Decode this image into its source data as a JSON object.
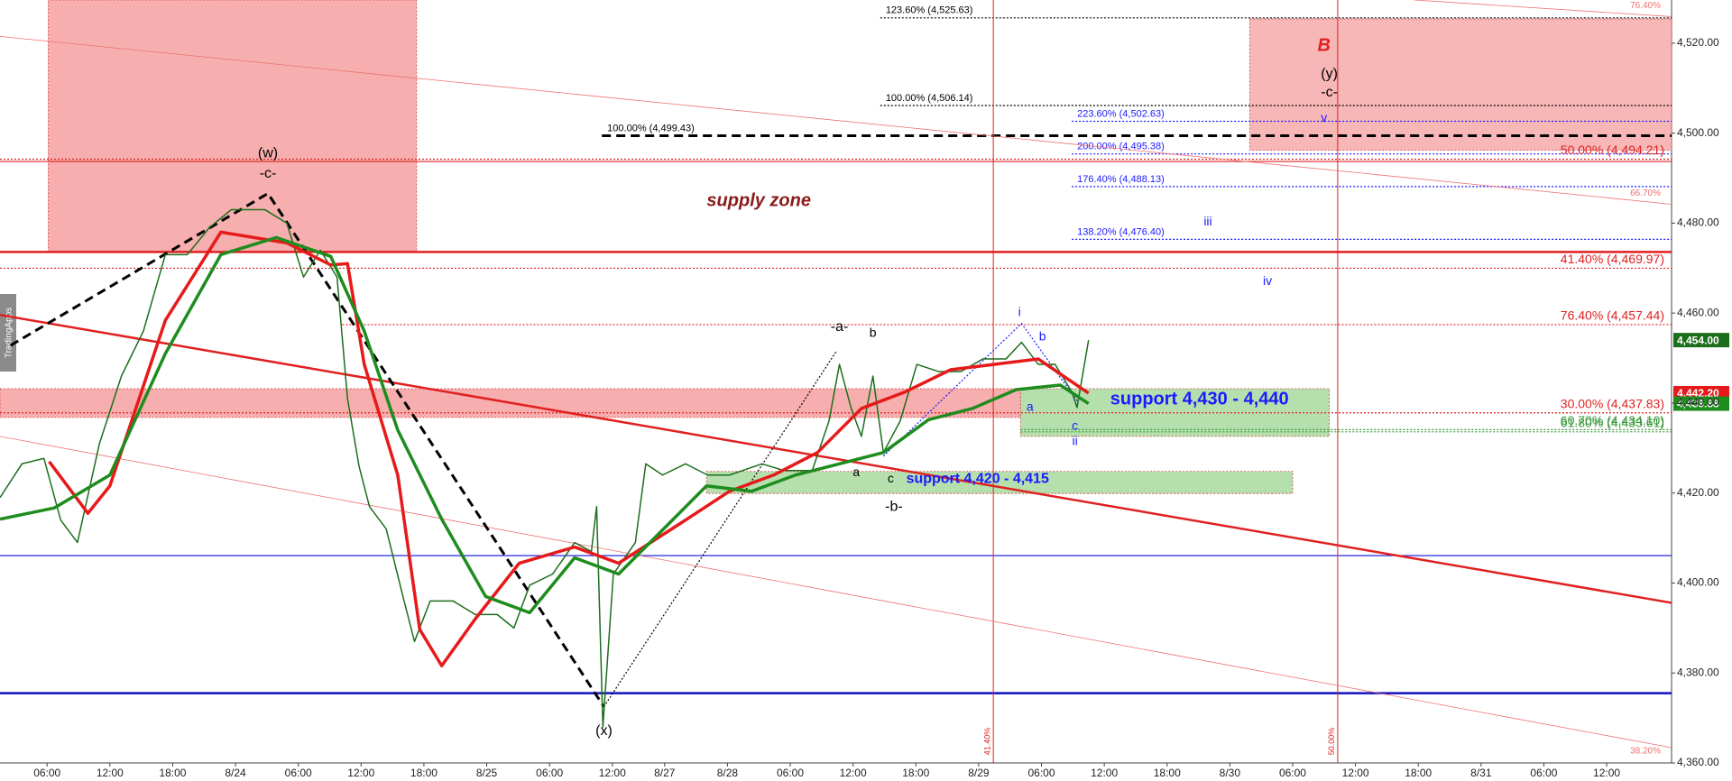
{
  "chart_data": {
    "type": "line",
    "watermark": "TradingApps",
    "xlim": [
      1.5,
      161.2
    ],
    "xticks": [
      {
        "value": 6,
        "label": "06:00"
      },
      {
        "value": 12,
        "label": "12:00"
      },
      {
        "value": 18,
        "label": "18:00"
      },
      {
        "value": 24,
        "label": "8/24"
      },
      {
        "value": 30,
        "label": "06:00"
      },
      {
        "value": 36,
        "label": "12:00"
      },
      {
        "value": 42,
        "label": "18:00"
      },
      {
        "value": 48,
        "label": "8/25"
      },
      {
        "value": 54,
        "label": "06:00"
      },
      {
        "value": 60,
        "label": "12:00"
      },
      {
        "value": 65,
        "label": "8/27"
      },
      {
        "value": 71,
        "label": "8/28"
      },
      {
        "value": 77,
        "label": "06:00"
      },
      {
        "value": 83,
        "label": "12:00"
      },
      {
        "value": 89,
        "label": "18:00"
      },
      {
        "value": 95,
        "label": "8/29"
      },
      {
        "value": 101,
        "label": "06:00"
      },
      {
        "value": 107,
        "label": "12:00"
      },
      {
        "value": 113,
        "label": "18:00"
      },
      {
        "value": 119,
        "label": "8/30"
      },
      {
        "value": 125,
        "label": "06:00"
      },
      {
        "value": 131,
        "label": "12:00"
      },
      {
        "value": 137,
        "label": "18:00"
      },
      {
        "value": 143,
        "label": "8/31"
      },
      {
        "value": 149,
        "label": "06:00"
      },
      {
        "value": 155,
        "label": "12:00"
      }
    ],
    "ylim": [
      4360,
      4529.6
    ],
    "yticks": [
      {
        "value": 4360,
        "label": "4,360.00"
      },
      {
        "value": 4380,
        "label": "4,380.00"
      },
      {
        "value": 4400,
        "label": "4,400.00"
      },
      {
        "value": 4420,
        "label": "4,420.00"
      },
      {
        "value": 4440,
        "label": "4,440.00"
      },
      {
        "value": 4460,
        "label": "4,460.00"
      },
      {
        "value": 4480,
        "label": "4,480.00"
      },
      {
        "value": 4500,
        "label": "4,500.00"
      },
      {
        "value": 4520,
        "label": "4,520.00"
      }
    ],
    "zones": [
      {
        "x": [
          6.1,
          41.3
        ],
        "y": [
          4473.6,
          4529.6
        ],
        "color": "#f5a0a0"
      },
      {
        "x": [
          1.5,
          99.0
        ],
        "y": [
          4436.8,
          4443.2
        ],
        "color": "#f5a0a0"
      },
      {
        "x": [
          99.0,
          128.5
        ],
        "y": [
          4432.6,
          4443.2
        ],
        "color": "#a8dba0"
      },
      {
        "x": [
          69.0,
          125.0
        ],
        "y": [
          4419.9,
          4424.8
        ],
        "color": "#a8dba0"
      },
      {
        "x": [
          120.9,
          161.2
        ],
        "y": [
          4496.2,
          4525.4
        ],
        "color": "#f7aaaa"
      }
    ],
    "levels": [
      {
        "value": 4493.7,
        "from": 1.5,
        "color": "#e02020",
        "style": "solid"
      },
      {
        "value": 4473.6,
        "from": 1.5,
        "color": "#e02020",
        "style": "thick"
      },
      {
        "value": 4406.1,
        "from": 1.5,
        "color": "#1010e0",
        "style": "solid"
      },
      {
        "value": 4375.5,
        "from": 1.5,
        "color": "#1010c0",
        "style": "thick"
      },
      {
        "label": "123.60% (4,525.63)",
        "value": 4525.63,
        "from": 85.6,
        "color": "#000000",
        "style": "dotted",
        "side": "left"
      },
      {
        "label": "100.00% (4,506.14)",
        "value": 4506.14,
        "from": 85.6,
        "color": "#000000",
        "style": "dotted",
        "side": "left"
      },
      {
        "label": "100.00% (4,499.43)",
        "value": 4499.43,
        "from": 59.0,
        "color": "#000000",
        "style": "thick-dashed",
        "side": "left"
      },
      {
        "label": "223.60% (4,502.63)",
        "value": 4502.63,
        "from": 103.9,
        "color": "#1a1aff",
        "style": "dotted",
        "side": "left"
      },
      {
        "label": "200.00% (4,495.38)",
        "value": 4495.38,
        "from": 103.9,
        "color": "#1a1aff",
        "style": "dotted",
        "side": "left"
      },
      {
        "label": "176.40% (4,488.13)",
        "value": 4488.13,
        "from": 103.9,
        "color": "#1a1aff",
        "style": "dotted",
        "side": "left"
      },
      {
        "label": "138.20% (4,476.40)",
        "value": 4476.4,
        "from": 103.9,
        "color": "#1a1aff",
        "style": "dotted",
        "side": "left"
      },
      {
        "label": "50.00% (4,494.21)",
        "value": 4494.21,
        "from": 1.5,
        "color": "#e02020",
        "style": "dotted",
        "side": "right"
      },
      {
        "label": "41.40% (4,469.97)",
        "value": 4469.97,
        "from": 1.5,
        "color": "#e02020",
        "style": "dotted",
        "side": "right"
      },
      {
        "label": "76.40% (4,457.44)",
        "value": 4457.44,
        "from": 34.2,
        "color": "#e02020",
        "style": "dotted",
        "side": "right"
      },
      {
        "label": "30.00% (4,437.83)",
        "value": 4437.83,
        "from": 1.5,
        "color": "#e02020",
        "style": "dotted",
        "side": "right"
      },
      {
        "label": "61.80% (4,433.61)",
        "value": 4433.61,
        "from": 99.0,
        "color": "#3a9a3a",
        "style": "dotted",
        "side": "right"
      },
      {
        "label": "60.70% (4,434.10)",
        "value": 4434.1,
        "from": 99.0,
        "color": "#3a9a3a",
        "style": "dotted",
        "side": "right"
      }
    ],
    "verticals": [
      {
        "x": 96.4,
        "label": "41.40%",
        "color": "#e02020"
      },
      {
        "x": 129.3,
        "label": "50.00%",
        "color": "#e02020"
      }
    ],
    "trendlines": [
      {
        "x": [
          1.5,
          161.2
        ],
        "y": [
          4459.6,
          4395.6
        ],
        "color": "#e02020",
        "style": "thick"
      },
      {
        "x": [
          1.5,
          161.2
        ],
        "y": [
          4521.5,
          4484.2
        ],
        "color": "#f07070",
        "style": "thin",
        "label": "66.70%"
      },
      {
        "x": [
          1.5,
          161.2
        ],
        "y": [
          4432.6,
          4363.4
        ],
        "color": "#f07070",
        "style": "thin",
        "label": "38.20%"
      },
      {
        "x": [
          136.6,
          161.2
        ],
        "y": [
          4529.6,
          4525.9
        ],
        "color": "#f07070",
        "style": "thin",
        "label": "76.40%"
      }
    ],
    "paths": [
      {
        "x": [
          2.5,
          27.1,
          59.2
        ],
        "y": [
          4452.8,
          4486.6,
          4372.5
        ],
        "color": "#000000",
        "style": "thick-dashed"
      },
      {
        "x": [
          59.2,
          81.4
        ],
        "y": [
          4372.5,
          4451.5
        ],
        "color": "#000000",
        "style": "dotted"
      },
      {
        "x": [
          85.9,
          99.1,
          104.4
        ],
        "y": [
          4428.2,
          4457.7,
          4440.5
        ],
        "color": "#1a1aff",
        "style": "dotted"
      }
    ],
    "series": [
      {
        "color": "#1c6e1c",
        "width": 1.5,
        "x": [
          1.5,
          3.6,
          5.7,
          7.3,
          8.9,
          11.0,
          13.1,
          15.2,
          17.3,
          19.4,
          21.5,
          23.6,
          26.8,
          28.9,
          30.5,
          32.1,
          33.7,
          34.7,
          35.8,
          36.8,
          38.4,
          40.0,
          41.1,
          42.6,
          44.8,
          46.9,
          49.0,
          50.6,
          52.1,
          54.3,
          56.4,
          58.0,
          58.5,
          59.1,
          60.1,
          62.2,
          63.2,
          64.8,
          67.0,
          69.1,
          71.2,
          74.3,
          76.4,
          79.1,
          80.7,
          81.7,
          82.8,
          83.8,
          84.9,
          85.9,
          87.5,
          89.1,
          91.2,
          93.3,
          95.4,
          97.6,
          99.1,
          100.7,
          102.3,
          103.9,
          104.4,
          105.5
        ],
        "values": [
          4419,
          4426.5,
          4427.7,
          4414,
          4409,
          4431,
          4446,
          4456,
          4473,
          4473,
          4479,
          4483,
          4483,
          4480,
          4468,
          4474,
          4468,
          4441,
          4426,
          4417,
          4412,
          4397,
          4387,
          4396,
          4396,
          4393,
          4393,
          4390,
          4399.5,
          4402,
          4409,
          4407,
          4417,
          4368,
          4402,
          4409,
          4426.5,
          4424,
          4426.5,
          4424,
          4424,
          4426.5,
          4425,
          4425,
          4436,
          4448.6,
          4439,
          4432.6,
          4446,
          4429,
          4436,
          4448.6,
          4447,
          4447,
          4449.8,
          4449.8,
          4453.5,
          4448.6,
          4448.6,
          4442.5,
          4439,
          4454
        ],
        "last_label": "4,454.00"
      },
      {
        "color": "#e61a1a",
        "width": 3.5,
        "x": [
          6.2,
          9.9,
          12.0,
          17.3,
          22.6,
          28.9,
          33.1,
          34.7,
          36.3,
          39.5,
          41.6,
          43.7,
          46.9,
          51.1,
          56.4,
          60.6,
          67.0,
          71.2,
          75.4,
          79.6,
          83.8,
          88.0,
          92.3,
          96.5,
          100.7,
          105.5
        ],
        "values": [
          4427,
          4415.5,
          4421.6,
          4458.4,
          4478,
          4475.6,
          4470.7,
          4471,
          4448.6,
          4424,
          4389.7,
          4381.6,
          4392,
          4404.4,
          4408,
          4404.4,
          4414,
          4420.4,
          4424,
          4429,
          4438.8,
          4442.5,
          4447.4,
          4448.6,
          4449.8,
          4442.2
        ],
        "last_label": "4,442.20"
      },
      {
        "color": "#1e8c1e",
        "width": 3.5,
        "x": [
          1.5,
          6.7,
          12.0,
          17.3,
          22.6,
          27.9,
          33.1,
          36.3,
          39.5,
          43.7,
          47.9,
          52.1,
          56.4,
          60.6,
          64.8,
          69.0,
          73.3,
          77.5,
          81.7,
          85.9,
          90.2,
          94.4,
          98.6,
          102.8,
          105.5
        ],
        "values": [
          4414.2,
          4416.7,
          4424,
          4451,
          4473,
          4476.8,
          4472.6,
          4456,
          4434,
          4414.2,
          4397,
          4393.4,
          4405.6,
          4402,
          4411.8,
          4421.6,
          4420.4,
          4424,
          4426.5,
          4429,
          4436.3,
          4438.8,
          4443,
          4444,
          4439.88
        ],
        "last_label": "4,439.88"
      }
    ],
    "annotations": [
      {
        "text": "(w)",
        "at": [
          27.1,
          4495.5
        ],
        "color": "#000000",
        "size": "medium"
      },
      {
        "text": "-c-",
        "at": [
          27.1,
          4491.0
        ],
        "color": "#000000",
        "size": "medium"
      },
      {
        "text": "(x)",
        "at": [
          59.2,
          4367.1
        ],
        "color": "#000000",
        "size": "medium"
      },
      {
        "text": "-a-",
        "at": [
          81.7,
          4456.9
        ],
        "color": "#000000",
        "size": "medium"
      },
      {
        "text": "b",
        "at": [
          84.9,
          4455.5
        ],
        "color": "#000000",
        "size": "small"
      },
      {
        "text": "a",
        "at": [
          83.3,
          4424.5
        ],
        "color": "#000000",
        "size": "small"
      },
      {
        "text": "c",
        "at": [
          86.6,
          4423.1
        ],
        "color": "#000000",
        "size": "small"
      },
      {
        "text": "-b-",
        "at": [
          86.9,
          4416.9
        ],
        "color": "#000000",
        "size": "medium"
      },
      {
        "text": "i",
        "at": [
          98.9,
          4460.1
        ],
        "color": "#1a1aff",
        "size": "small"
      },
      {
        "text": "b",
        "at": [
          101.1,
          4454.7
        ],
        "color": "#1a1aff",
        "size": "small"
      },
      {
        "text": "a",
        "at": [
          99.9,
          4439.0
        ],
        "color": "#1a1aff",
        "size": "small"
      },
      {
        "text": "c",
        "at": [
          104.2,
          4434.8
        ],
        "color": "#1a1aff",
        "size": "small"
      },
      {
        "text": "ii",
        "at": [
          104.2,
          4431.4
        ],
        "color": "#1a1aff",
        "size": "small"
      },
      {
        "text": "iii",
        "at": [
          116.9,
          4480.2
        ],
        "color": "#1a1aff",
        "size": "small"
      },
      {
        "text": "iv",
        "at": [
          122.6,
          4467.0
        ],
        "color": "#1a1aff",
        "size": "small"
      },
      {
        "text": "v",
        "at": [
          128.0,
          4503.3
        ],
        "color": "#1a1aff",
        "size": "small"
      },
      {
        "text": "(y)",
        "at": [
          128.5,
          4513.1
        ],
        "color": "#000000",
        "size": "medium"
      },
      {
        "text": "-c-",
        "at": [
          128.5,
          4509.0
        ],
        "color": "#000000",
        "size": "medium"
      },
      {
        "text": "B",
        "at": [
          128.0,
          4519.3
        ],
        "color": "#e02020",
        "size": "large",
        "style": "bold-italic"
      },
      {
        "text": "supply zone",
        "at": [
          74.0,
          4484.9
        ],
        "color": "#8b1a1a",
        "size": "large",
        "style": "bold-italic"
      },
      {
        "text": "support 4,430 - 4,440",
        "at": [
          116.1,
          4440.7
        ],
        "color": "#1a1aff",
        "size": "large",
        "style": "bold"
      },
      {
        "text": "support 4,420 - 4,415",
        "at": [
          94.9,
          4423.1
        ],
        "color": "#1a1aff",
        "size": "medium",
        "style": "bold"
      }
    ]
  }
}
